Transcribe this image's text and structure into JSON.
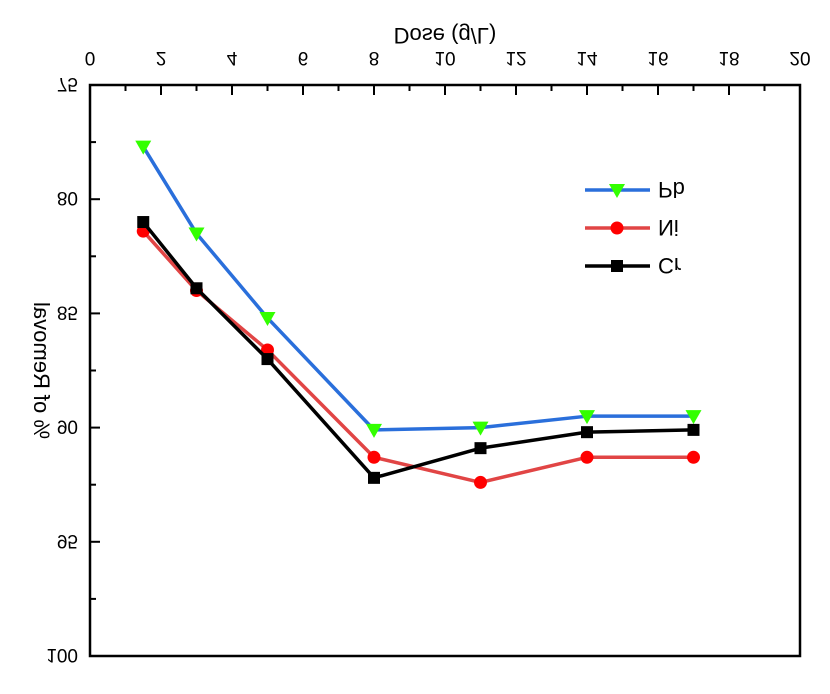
{
  "chart_data": {
    "type": "line",
    "orientation": "flipped-vertically",
    "title": "",
    "xlabel": "Dose (g/L)",
    "ylabel": "% of Removal",
    "xlim": [
      0,
      20
    ],
    "ylim": [
      75,
      100
    ],
    "x_ticks": [
      "0",
      "2",
      "4",
      "6",
      "8",
      "10",
      "12",
      "14",
      "16",
      "18",
      "20"
    ],
    "y_ticks": [
      "75",
      "80",
      "85",
      "90",
      "95",
      "100"
    ],
    "x": [
      1.5,
      3,
      5,
      8,
      11,
      14,
      17
    ],
    "series": [
      {
        "name": "Pb",
        "color": "#2a6fdb",
        "marker_color": "#33ff00",
        "marker": "triangle",
        "values": [
          77.7,
          81.5,
          85.2,
          90.1,
          90.0,
          89.5,
          89.5
        ]
      },
      {
        "name": "Ni",
        "color": "#e14545",
        "marker_color": "#ff0000",
        "marker": "circle",
        "values": [
          81.4,
          84.0,
          86.6,
          91.3,
          92.4,
          91.3,
          91.3
        ]
      },
      {
        "name": "Cr",
        "color": "#000000",
        "marker_color": "#000000",
        "marker": "square",
        "values": [
          81.0,
          83.9,
          87.0,
          92.2,
          90.9,
          90.2,
          90.1
        ]
      }
    ],
    "grid": false,
    "legend_position": "upper-right"
  }
}
